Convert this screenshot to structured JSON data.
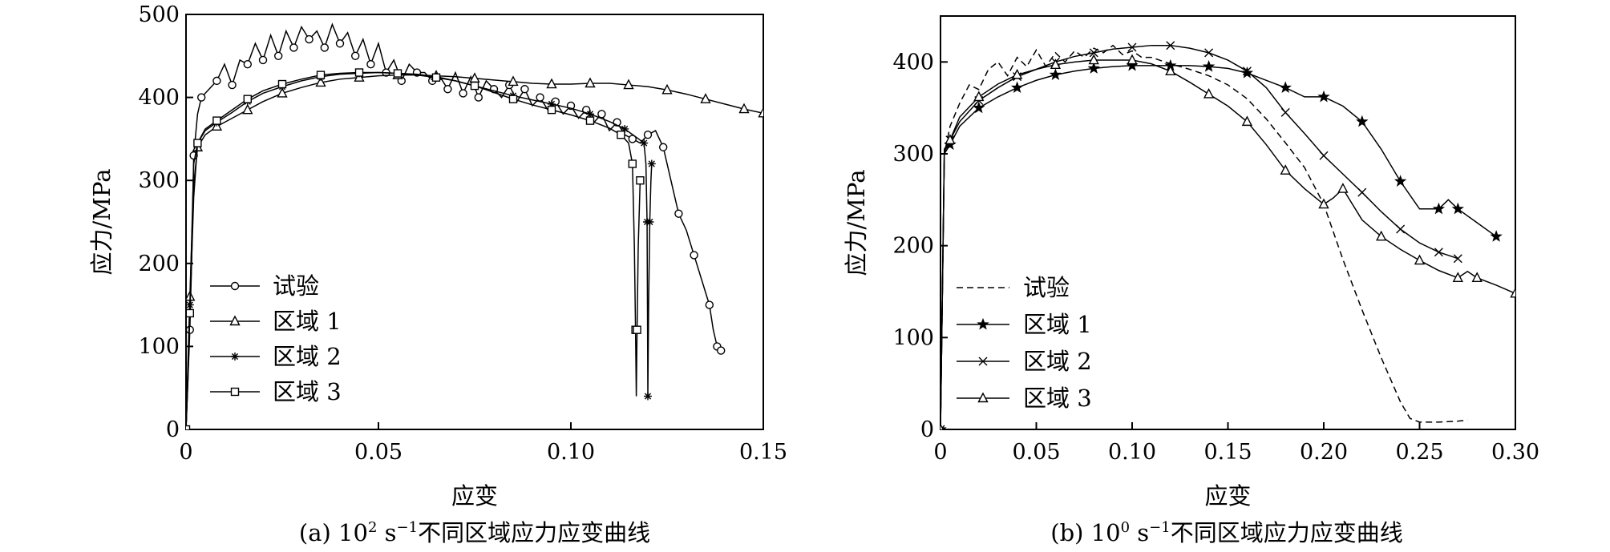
{
  "chart_data": [
    {
      "type": "line",
      "caption_prefix": "(a) 10",
      "caption_sup": "2",
      "caption_mid": " s",
      "caption_sup2": "−1",
      "caption_suffix": "不同区域应力应变曲线",
      "xlabel": "应变",
      "ylabel": "应力/MPa",
      "xlim": [
        0,
        0.15
      ],
      "ylim": [
        0,
        500
      ],
      "xticks": [
        "0",
        "0.05",
        "0.10",
        "0.15"
      ],
      "yticks": [
        "0",
        "100",
        "200",
        "300",
        "400",
        "500"
      ],
      "legend_position": "lower-left",
      "series": [
        {
          "name": "试验",
          "marker": "circle",
          "dash": "solid",
          "x": [
            0,
            0.0005,
            0.001,
            0.0015,
            0.002,
            0.003,
            0.004,
            0.006,
            0.008,
            0.01,
            0.012,
            0.014,
            0.016,
            0.018,
            0.02,
            0.022,
            0.024,
            0.026,
            0.028,
            0.03,
            0.032,
            0.034,
            0.036,
            0.038,
            0.04,
            0.042,
            0.044,
            0.046,
            0.048,
            0.05,
            0.052,
            0.054,
            0.056,
            0.058,
            0.06,
            0.062,
            0.064,
            0.066,
            0.068,
            0.07,
            0.072,
            0.074,
            0.076,
            0.078,
            0.08,
            0.082,
            0.084,
            0.086,
            0.088,
            0.09,
            0.092,
            0.094,
            0.096,
            0.098,
            0.1,
            0.102,
            0.104,
            0.106,
            0.108,
            0.11,
            0.112,
            0.114,
            0.116,
            0.118,
            0.12,
            0.122,
            0.124,
            0.126,
            0.128,
            0.13,
            0.132,
            0.134,
            0.136,
            0.137,
            0.138,
            0.139
          ],
          "y": [
            0,
            60,
            120,
            210,
            330,
            380,
            400,
            410,
            420,
            440,
            415,
            445,
            440,
            465,
            445,
            475,
            450,
            480,
            460,
            485,
            470,
            480,
            460,
            488,
            465,
            478,
            450,
            470,
            440,
            465,
            430,
            445,
            420,
            440,
            430,
            430,
            420,
            425,
            410,
            430,
            405,
            425,
            400,
            420,
            410,
            400,
            415,
            395,
            410,
            390,
            400,
            385,
            395,
            380,
            390,
            375,
            385,
            370,
            380,
            360,
            370,
            355,
            350,
            345,
            355,
            360,
            340,
            300,
            260,
            240,
            210,
            180,
            150,
            120,
            100,
            95
          ]
        },
        {
          "name": "区域 1",
          "marker": "triangle",
          "dash": "solid",
          "x": [
            0,
            0.0005,
            0.001,
            0.002,
            0.003,
            0.005,
            0.008,
            0.012,
            0.016,
            0.02,
            0.025,
            0.03,
            0.035,
            0.04,
            0.045,
            0.05,
            0.055,
            0.06,
            0.065,
            0.07,
            0.075,
            0.08,
            0.085,
            0.09,
            0.095,
            0.1,
            0.105,
            0.11,
            0.115,
            0.12,
            0.125,
            0.13,
            0.135,
            0.14,
            0.145,
            0.15
          ],
          "y": [
            0,
            80,
            160,
            295,
            340,
            355,
            365,
            375,
            385,
            395,
            405,
            412,
            418,
            422,
            424,
            426,
            427,
            427,
            426,
            425,
            423,
            421,
            419,
            417,
            416,
            416,
            417,
            417,
            415,
            413,
            409,
            404,
            398,
            392,
            386,
            381
          ]
        },
        {
          "name": "区域 2",
          "marker": "asterisk",
          "dash": "solid",
          "x": [
            0,
            0.0005,
            0.001,
            0.002,
            0.003,
            0.005,
            0.008,
            0.012,
            0.016,
            0.02,
            0.025,
            0.03,
            0.035,
            0.04,
            0.045,
            0.05,
            0.055,
            0.06,
            0.065,
            0.07,
            0.075,
            0.08,
            0.085,
            0.09,
            0.095,
            0.1,
            0.105,
            0.11,
            0.114,
            0.117,
            0.119,
            0.1195,
            0.1198,
            0.1199,
            0.12,
            0.1202,
            0.1205,
            0.1208,
            0.121
          ],
          "y": [
            0,
            70,
            150,
            320,
            345,
            360,
            370,
            382,
            395,
            405,
            413,
            420,
            425,
            428,
            429,
            430,
            429,
            428,
            425,
            420,
            414,
            408,
            402,
            397,
            392,
            387,
            380,
            371,
            362,
            352,
            345,
            320,
            250,
            150,
            40,
            150,
            250,
            300,
            320
          ]
        },
        {
          "name": "区域 3",
          "marker": "square",
          "dash": "solid",
          "x": [
            0,
            0.0005,
            0.001,
            0.002,
            0.003,
            0.005,
            0.008,
            0.012,
            0.016,
            0.02,
            0.025,
            0.03,
            0.035,
            0.04,
            0.045,
            0.05,
            0.055,
            0.06,
            0.065,
            0.07,
            0.075,
            0.08,
            0.085,
            0.09,
            0.095,
            0.1,
            0.105,
            0.11,
            0.113,
            0.115,
            0.116,
            0.1165,
            0.1168,
            0.117,
            0.1172,
            0.1175,
            0.118
          ],
          "y": [
            0,
            60,
            140,
            280,
            345,
            362,
            372,
            385,
            398,
            408,
            416,
            422,
            427,
            429,
            430,
            430,
            429,
            427,
            424,
            420,
            414,
            406,
            398,
            391,
            385,
            379,
            372,
            363,
            355,
            345,
            320,
            220,
            120,
            40,
            120,
            220,
            300
          ]
        }
      ]
    },
    {
      "type": "line",
      "caption_prefix": "(b) 10",
      "caption_sup": "0",
      "caption_mid": " s",
      "caption_sup2": "−1",
      "caption_suffix": "不同区域应力应变曲线",
      "xlabel": "应变",
      "ylabel": "应力/MPa",
      "xlim": [
        0,
        0.3
      ],
      "ylim": [
        0,
        450
      ],
      "xticks": [
        "0",
        "0.05",
        "0.10",
        "0.15",
        "0.20",
        "0.25",
        "0.30"
      ],
      "yticks": [
        "0",
        "100",
        "200",
        "300",
        "400"
      ],
      "legend_position": "lower-left",
      "series": [
        {
          "name": "试验",
          "marker": "none",
          "dash": "dashed",
          "x": [
            0,
            0.002,
            0.005,
            0.01,
            0.015,
            0.02,
            0.025,
            0.03,
            0.035,
            0.04,
            0.045,
            0.05,
            0.055,
            0.06,
            0.065,
            0.07,
            0.075,
            0.08,
            0.085,
            0.09,
            0.095,
            0.1,
            0.105,
            0.11,
            0.12,
            0.13,
            0.14,
            0.15,
            0.16,
            0.17,
            0.18,
            0.19,
            0.2,
            0.21,
            0.22,
            0.23,
            0.24,
            0.245,
            0.25,
            0.26,
            0.27,
            0.275
          ],
          "y": [
            0,
            300,
            330,
            355,
            375,
            370,
            392,
            400,
            385,
            405,
            395,
            413,
            395,
            410,
            400,
            412,
            405,
            415,
            410,
            418,
            408,
            412,
            405,
            405,
            398,
            392,
            385,
            375,
            360,
            338,
            312,
            285,
            245,
            185,
            130,
            78,
            30,
            12,
            8,
            8,
            9,
            10
          ]
        },
        {
          "name": "区域 1",
          "marker": "star",
          "dash": "solid",
          "x": [
            0,
            0.002,
            0.005,
            0.01,
            0.02,
            0.03,
            0.04,
            0.05,
            0.06,
            0.07,
            0.08,
            0.09,
            0.1,
            0.11,
            0.12,
            0.13,
            0.14,
            0.15,
            0.16,
            0.17,
            0.18,
            0.19,
            0.2,
            0.21,
            0.22,
            0.23,
            0.24,
            0.25,
            0.26,
            0.265,
            0.27,
            0.28,
            0.29
          ],
          "y": [
            0,
            300,
            310,
            330,
            350,
            362,
            372,
            380,
            386,
            390,
            393,
            395,
            396,
            396,
            396,
            396,
            395,
            393,
            388,
            380,
            372,
            362,
            362,
            352,
            335,
            305,
            270,
            240,
            240,
            250,
            240,
            225,
            210
          ]
        },
        {
          "name": "区域 2",
          "marker": "cross",
          "dash": "solid",
          "x": [
            0,
            0.002,
            0.005,
            0.01,
            0.02,
            0.03,
            0.04,
            0.05,
            0.06,
            0.07,
            0.08,
            0.09,
            0.1,
            0.11,
            0.12,
            0.13,
            0.14,
            0.15,
            0.16,
            0.17,
            0.18,
            0.19,
            0.2,
            0.21,
            0.22,
            0.23,
            0.24,
            0.25,
            0.26,
            0.27
          ],
          "y": [
            0,
            305,
            315,
            335,
            358,
            372,
            384,
            392,
            400,
            406,
            410,
            414,
            416,
            418,
            418,
            415,
            410,
            402,
            390,
            372,
            345,
            322,
            298,
            278,
            258,
            237,
            218,
            203,
            193,
            186
          ]
        },
        {
          "name": "区域 3",
          "marker": "triangle",
          "dash": "solid",
          "x": [
            0,
            0.002,
            0.005,
            0.01,
            0.02,
            0.03,
            0.04,
            0.05,
            0.06,
            0.07,
            0.08,
            0.09,
            0.1,
            0.11,
            0.12,
            0.13,
            0.14,
            0.15,
            0.16,
            0.17,
            0.18,
            0.19,
            0.2,
            0.205,
            0.21,
            0.22,
            0.23,
            0.24,
            0.25,
            0.26,
            0.27,
            0.275,
            0.28,
            0.29,
            0.3
          ],
          "y": [
            0,
            302,
            315,
            340,
            362,
            376,
            386,
            392,
            397,
            400,
            402,
            402,
            402,
            398,
            390,
            378,
            365,
            352,
            335,
            310,
            282,
            262,
            245,
            252,
            262,
            228,
            210,
            196,
            184,
            173,
            165,
            172,
            165,
            157,
            148
          ]
        }
      ]
    }
  ]
}
